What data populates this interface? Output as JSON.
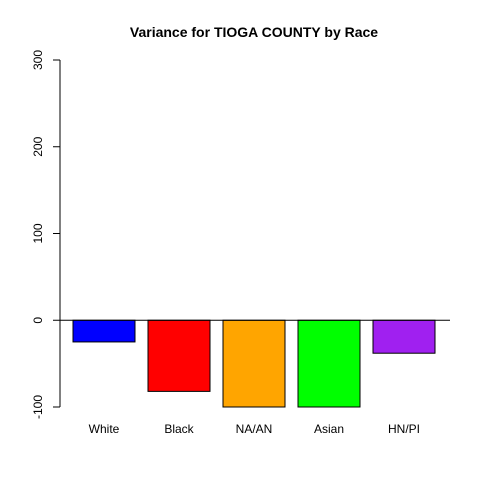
{
  "chart_data": {
    "type": "bar",
    "title": "Variance for TIOGA COUNTY by Race",
    "xlabel": "",
    "ylabel": "",
    "categories": [
      "White",
      "Black",
      "NA/AN",
      "Asian",
      "HN/PI"
    ],
    "values": [
      -25,
      -82,
      -100,
      -100,
      -38
    ],
    "colors": [
      "#0000FF",
      "#FF0000",
      "#FFA500",
      "#00FF00",
      "#A020F0"
    ],
    "ylim": [
      -100,
      300
    ],
    "yticks": [
      -100,
      0,
      100,
      200,
      300
    ],
    "ytick_labels": [
      "-100",
      "0",
      "100",
      "200",
      "300"
    ],
    "grid": false,
    "legend": "none",
    "zero_line": true
  }
}
